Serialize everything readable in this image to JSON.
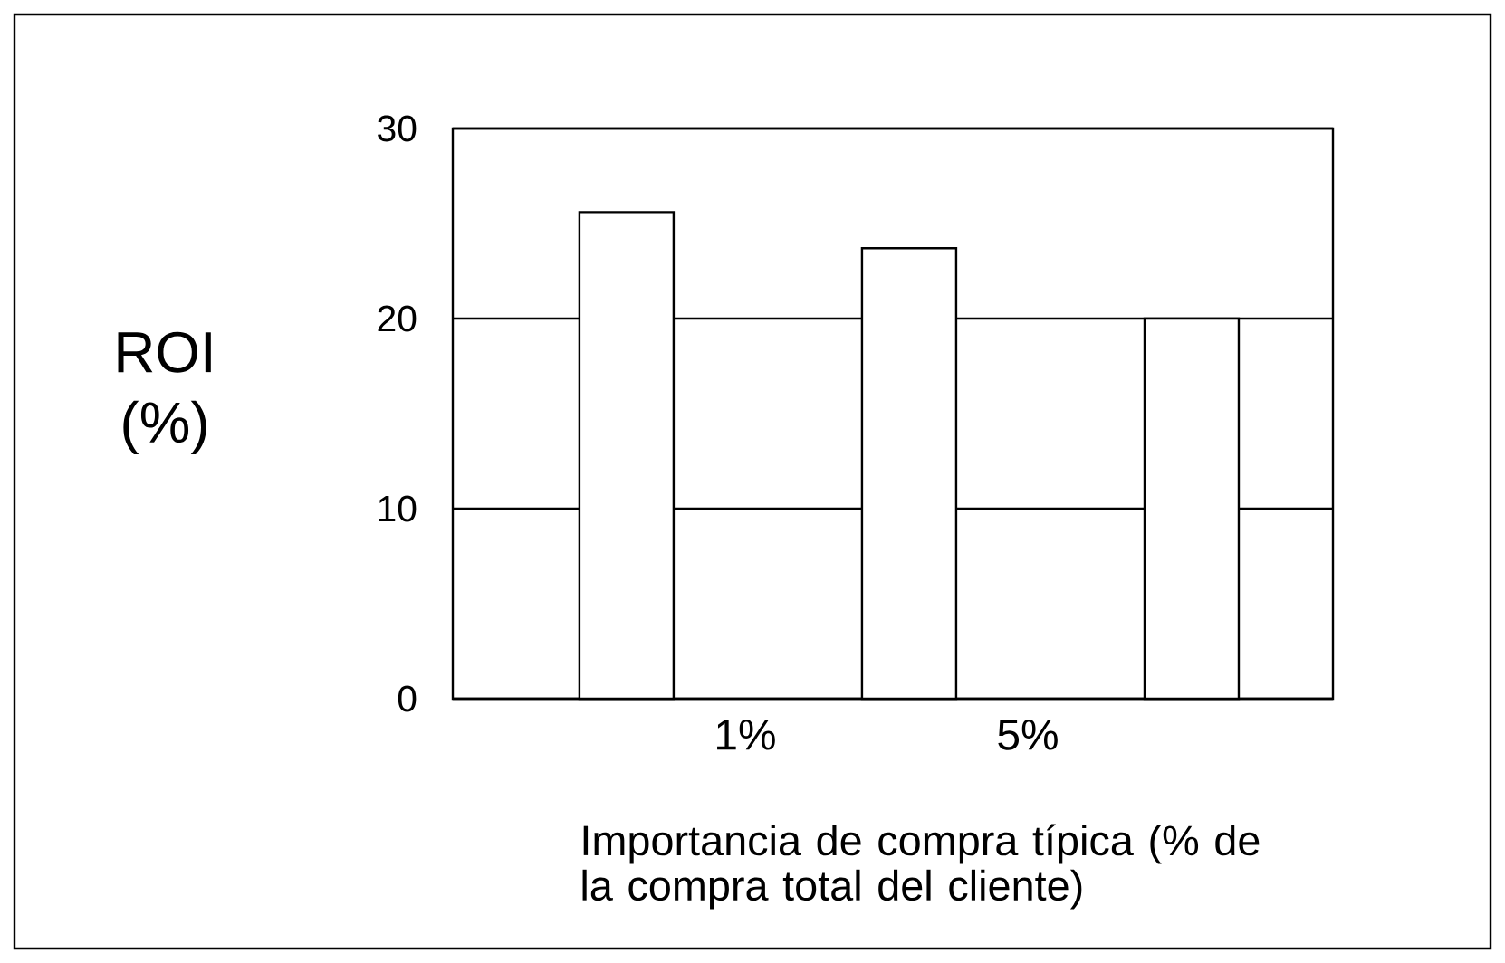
{
  "chart_data": {
    "type": "bar",
    "xlabel": "Importancia de compra típica (% de la compra total del cliente)",
    "ylabel": "ROI (%)",
    "categories": [
      null,
      null,
      null
    ],
    "values": [
      25.6,
      23.7,
      20
    ],
    "color": "#ffffff",
    "ylim": [
      0,
      30
    ],
    "yticks": [
      0,
      10,
      20,
      30
    ],
    "grid": "y",
    "annotations": [
      "1%",
      "5%"
    ]
  }
}
